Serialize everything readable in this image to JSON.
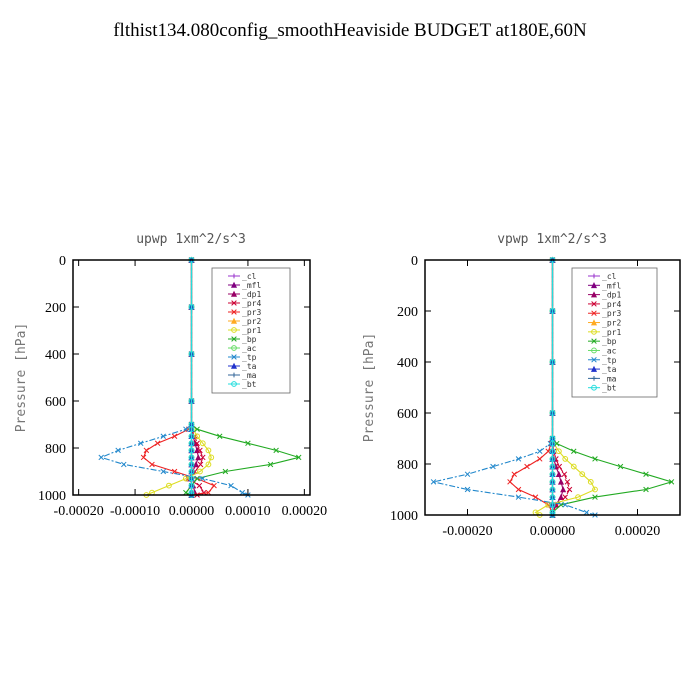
{
  "title": "flthist134.080config_smoothHeaviside  BUDGET at180E,60N",
  "chart_data": [
    {
      "type": "line",
      "title": "upwp  1xm^2/s^3",
      "ylabel": "Pressure [hPa]",
      "xlim": [
        -0.00021,
        0.00021
      ],
      "ylim": [
        1000,
        0
      ],
      "x_ticks": [
        -0.0002,
        -0.0001,
        0.0,
        0.0001,
        0.0002
      ],
      "x_tick_labels": [
        "-0.00020",
        "-0.00010",
        "0.00000",
        "0.00010",
        "0.00020"
      ],
      "y_ticks": [
        0,
        200,
        400,
        600,
        800,
        1000
      ],
      "y_tick_labels": [
        "0",
        "200",
        "400",
        "600",
        "800",
        "1000"
      ],
      "legend_position": "top-right",
      "pressure": [
        0,
        200,
        400,
        600,
        700,
        720,
        750,
        780,
        810,
        840,
        870,
        900,
        930,
        960,
        990,
        1000
      ],
      "series": [
        {
          "name": "_cl",
          "color": "#9933cc",
          "values": [
            0,
            0,
            0,
            0,
            0,
            0,
            0,
            0,
            0,
            0,
            0,
            0,
            0,
            0,
            0,
            0
          ]
        },
        {
          "name": "_mfl",
          "color": "#800080",
          "values": [
            0,
            0,
            0,
            0,
            0,
            0,
            0,
            0,
            0,
            0,
            0,
            0,
            0,
            0,
            0,
            0
          ]
        },
        {
          "name": "_dp1",
          "color": "#990066",
          "values": [
            0,
            0,
            0,
            0,
            0,
            0,
            3e-06,
            6e-06,
            1e-05,
            1.2e-05,
            8e-06,
            2e-06,
            -4e-06,
            3e-06,
            6e-06,
            0
          ]
        },
        {
          "name": "_pr4",
          "color": "#cc0033",
          "values": [
            0,
            0,
            0,
            0,
            0,
            0,
            6e-06,
            1e-05,
            1.5e-05,
            2e-05,
            1.6e-05,
            6e-06,
            -6e-06,
            1.4e-05,
            2.2e-05,
            1e-05
          ]
        },
        {
          "name": "_pr3",
          "color": "#ee2222",
          "values": [
            0,
            0,
            0,
            0,
            0,
            -5e-06,
            -3e-05,
            -6e-05,
            -8e-05,
            -8.5e-05,
            -7e-05,
            -3e-05,
            1e-05,
            4e-05,
            3e-05,
            0
          ]
        },
        {
          "name": "_pr2",
          "color": "#ffaa22",
          "values": [
            0,
            0,
            0,
            0,
            0,
            0,
            0,
            0,
            0,
            0,
            0,
            0,
            0,
            0,
            0,
            0
          ]
        },
        {
          "name": "_pr1",
          "color": "#dddd22",
          "values": [
            0,
            0,
            0,
            0,
            0,
            3e-06,
            1e-05,
            2e-05,
            3e-05,
            3.5e-05,
            3e-05,
            1.5e-05,
            -1e-05,
            -4e-05,
            -7e-05,
            -8e-05
          ]
        },
        {
          "name": "_bp",
          "color": "#22aa22",
          "values": [
            0,
            0,
            0,
            0,
            0,
            1e-05,
            5e-05,
            0.0001,
            0.00015,
            0.00019,
            0.00014,
            6e-05,
            1e-05,
            0,
            -1e-05,
            0
          ]
        },
        {
          "name": "_ac",
          "color": "#66dd66",
          "values": [
            0,
            0,
            0,
            0,
            0,
            0,
            0,
            0,
            0,
            0,
            0,
            0,
            0,
            0,
            0,
            0
          ]
        },
        {
          "name": "_tp",
          "color": "#2288cc",
          "values": [
            0,
            0,
            0,
            0,
            0,
            -1e-05,
            -5e-05,
            -9e-05,
            -0.00013,
            -0.00016,
            -0.00012,
            -5e-05,
            2e-05,
            7e-05,
            9e-05,
            0.0001
          ]
        },
        {
          "name": "_ta",
          "color": "#2233cc",
          "values": [
            0,
            0,
            0,
            0,
            0,
            0,
            0,
            0,
            0,
            0,
            0,
            0,
            0,
            0,
            0,
            0
          ]
        },
        {
          "name": "_ma",
          "color": "#336699",
          "values": [
            0,
            0,
            0,
            0,
            0,
            0,
            0,
            0,
            0,
            0,
            0,
            0,
            0,
            0,
            0,
            0
          ]
        },
        {
          "name": "_bt",
          "color": "#22dddd",
          "values": [
            0,
            0,
            0,
            0,
            0,
            0,
            0,
            0,
            0,
            0,
            0,
            0,
            0,
            0,
            0,
            0
          ]
        }
      ]
    },
    {
      "type": "line",
      "title": "vpwp  1xm^2/s^3",
      "ylabel": "Pressure [hPa]",
      "xlim": [
        -0.0003,
        0.0003
      ],
      "ylim": [
        1000,
        0
      ],
      "x_ticks": [
        -0.0002,
        0.0,
        0.0002
      ],
      "x_tick_labels": [
        "-0.00020",
        "0.00000",
        "0.00020"
      ],
      "y_ticks": [
        0,
        200,
        400,
        600,
        800,
        1000
      ],
      "y_tick_labels": [
        "0",
        "200",
        "400",
        "600",
        "800",
        "1000"
      ],
      "legend_position": "top-right",
      "pressure": [
        0,
        200,
        400,
        600,
        700,
        720,
        750,
        780,
        810,
        840,
        870,
        900,
        930,
        960,
        990,
        1000
      ],
      "series": [
        {
          "name": "_cl",
          "color": "#9933cc",
          "values": [
            0,
            0,
            0,
            0,
            0,
            0,
            0,
            0,
            0,
            0,
            0,
            0,
            0,
            0,
            0,
            0
          ]
        },
        {
          "name": "_mfl",
          "color": "#800080",
          "values": [
            0,
            0,
            0,
            0,
            0,
            0,
            0,
            0,
            0,
            0,
            0,
            0,
            0,
            0,
            0,
            0
          ]
        },
        {
          "name": "_dp1",
          "color": "#990066",
          "values": [
            0,
            0,
            0,
            0,
            0,
            0,
            0,
            3e-06,
            8e-06,
            1.5e-05,
            2e-05,
            2.5e-05,
            2e-05,
            8e-06,
            0,
            0
          ]
        },
        {
          "name": "_pr4",
          "color": "#cc0033",
          "values": [
            0,
            0,
            0,
            0,
            0,
            0,
            3e-06,
            8e-06,
            1.6e-05,
            2.8e-05,
            3.5e-05,
            4e-05,
            3e-05,
            1e-05,
            0,
            0
          ]
        },
        {
          "name": "_pr3",
          "color": "#ee2222",
          "values": [
            0,
            0,
            0,
            0,
            0,
            -3e-06,
            -1e-05,
            -3e-05,
            -6e-05,
            -9e-05,
            -0.0001,
            -8e-05,
            -4e-05,
            -1e-05,
            0,
            0
          ]
        },
        {
          "name": "_pr2",
          "color": "#ffaa22",
          "values": [
            0,
            0,
            0,
            0,
            0,
            0,
            0,
            0,
            0,
            0,
            0,
            0,
            0,
            0,
            0,
            0
          ]
        },
        {
          "name": "_pr1",
          "color": "#dddd22",
          "values": [
            0,
            0,
            0,
            0,
            0,
            3e-06,
            1.5e-05,
            3e-05,
            5e-05,
            7e-05,
            9e-05,
            0.0001,
            6e-05,
            -1e-05,
            -4e-05,
            -3e-05
          ]
        },
        {
          "name": "_bp",
          "color": "#22aa22",
          "values": [
            0,
            0,
            0,
            0,
            0,
            1e-05,
            5e-05,
            0.0001,
            0.00016,
            0.00022,
            0.00028,
            0.00022,
            0.0001,
            2e-05,
            0,
            0
          ]
        },
        {
          "name": "_ac",
          "color": "#66dd66",
          "values": [
            0,
            0,
            0,
            0,
            0,
            0,
            0,
            0,
            0,
            0,
            0,
            0,
            0,
            0,
            0,
            0
          ]
        },
        {
          "name": "_tp",
          "color": "#2288cc",
          "values": [
            0,
            0,
            0,
            0,
            0,
            -5e-06,
            -3e-05,
            -8e-05,
            -0.00014,
            -0.0002,
            -0.00028,
            -0.0002,
            -8e-05,
            3e-05,
            8e-05,
            0.0001
          ]
        },
        {
          "name": "_ta",
          "color": "#2233cc",
          "values": [
            0,
            0,
            0,
            0,
            0,
            0,
            0,
            0,
            0,
            0,
            0,
            0,
            0,
            0,
            0,
            0
          ]
        },
        {
          "name": "_ma",
          "color": "#336699",
          "values": [
            0,
            0,
            0,
            0,
            0,
            0,
            0,
            0,
            0,
            0,
            0,
            0,
            0,
            0,
            0,
            0
          ]
        },
        {
          "name": "_bt",
          "color": "#22dddd",
          "values": [
            0,
            0,
            0,
            0,
            0,
            0,
            0,
            0,
            0,
            0,
            0,
            0,
            0,
            0,
            0,
            0
          ]
        }
      ]
    }
  ]
}
